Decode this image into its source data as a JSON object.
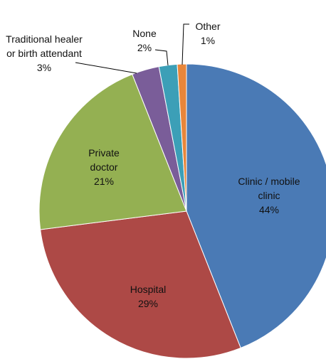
{
  "chart_data": {
    "type": "pie",
    "categories": [
      "Clinic / mobile clinic",
      "Hospital",
      "Private doctor",
      "Traditional healer or birth attendant",
      "None",
      "Other"
    ],
    "values": [
      44,
      29,
      21,
      3,
      2,
      1
    ],
    "value_labels": [
      "44%",
      "29%",
      "21%",
      "3%",
      "2%",
      "1%"
    ],
    "colors": [
      "#4a7ab5",
      "#ad4946",
      "#94b052",
      "#7a5d99",
      "#3c9fb7",
      "#e8863a"
    ]
  }
}
